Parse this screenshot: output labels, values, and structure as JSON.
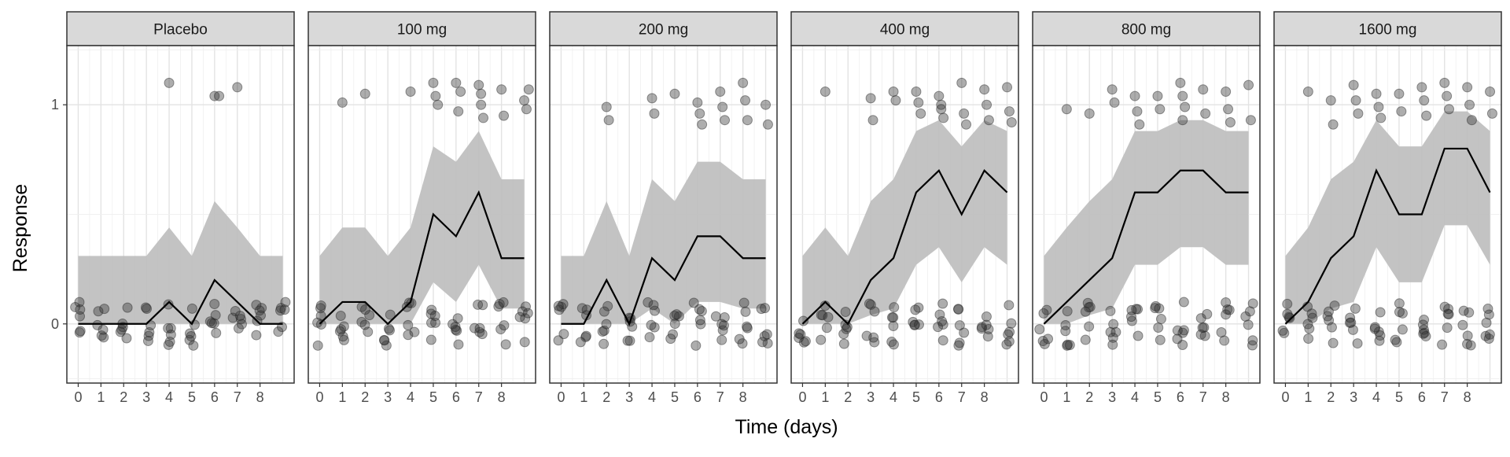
{
  "chart_data": {
    "type": "line",
    "facet_variable": "dose",
    "xlabel": "Time (days)",
    "ylabel": "Response",
    "x_ticks": [
      0,
      1,
      2,
      3,
      4,
      5,
      6,
      7,
      8
    ],
    "y_ticks": [
      0,
      1
    ],
    "xlim": [
      -0.5,
      9.5
    ],
    "ylim": [
      -0.27,
      1.27
    ],
    "grid": true,
    "ribbon_color": "#bdbdbd",
    "line_color": "#000000",
    "point_color": "#333333",
    "strip_color": "#d9d9d9",
    "panels": [
      {
        "label": "Placebo",
        "time": [
          0,
          1,
          2,
          3,
          4,
          5,
          6,
          7,
          8,
          9
        ],
        "median": [
          0,
          0,
          0,
          0,
          0.1,
          0,
          0.2,
          0.1,
          0,
          0
        ],
        "lower": [
          0,
          0,
          0,
          0,
          0,
          0,
          0,
          0,
          0,
          0
        ],
        "upper": [
          0.31,
          0.31,
          0.31,
          0.31,
          0.44,
          0.31,
          0.56,
          0.44,
          0.31,
          0.31
        ],
        "responders_near_1": [
          [
            4,
            1.1
          ],
          [
            6,
            1.04
          ],
          [
            6.2,
            1.04
          ],
          [
            7,
            1.08
          ]
        ]
      },
      {
        "label": "100 mg",
        "time": [
          0,
          1,
          2,
          3,
          4,
          5,
          6,
          7,
          8,
          9
        ],
        "median": [
          0,
          0.1,
          0.1,
          0,
          0.1,
          0.5,
          0.4,
          0.6,
          0.3,
          0.3
        ],
        "lower": [
          0,
          0,
          0,
          0,
          0,
          0.19,
          0.1,
          0.27,
          0.07,
          0.07
        ],
        "upper": [
          0.31,
          0.44,
          0.44,
          0.31,
          0.44,
          0.81,
          0.74,
          0.88,
          0.66,
          0.66
        ],
        "responders_near_1": [
          [
            1,
            1.01
          ],
          [
            2,
            1.05
          ],
          [
            4,
            1.06
          ],
          [
            5,
            1.1
          ],
          [
            5.1,
            1.04
          ],
          [
            5.2,
            1.0
          ],
          [
            6,
            1.1
          ],
          [
            6.1,
            0.97
          ],
          [
            6.2,
            1.06
          ],
          [
            7,
            1.09
          ],
          [
            7.1,
            1.0
          ],
          [
            7.2,
            0.94
          ],
          [
            7.1,
            1.05
          ],
          [
            8,
            1.07
          ],
          [
            8.1,
            0.95
          ],
          [
            9,
            1.02
          ],
          [
            9.1,
            0.98
          ],
          [
            9.2,
            1.07
          ]
        ]
      },
      {
        "label": "200 mg",
        "time": [
          0,
          1,
          2,
          3,
          4,
          5,
          6,
          7,
          8,
          9
        ],
        "median": [
          0,
          0,
          0.2,
          0,
          0.3,
          0.2,
          0.4,
          0.4,
          0.3,
          0.3
        ],
        "lower": [
          0,
          0,
          0,
          0,
          0.07,
          0,
          0.1,
          0.1,
          0.07,
          0.07
        ],
        "upper": [
          0.31,
          0.31,
          0.56,
          0.31,
          0.66,
          0.56,
          0.74,
          0.74,
          0.66,
          0.66
        ],
        "responders_near_1": [
          [
            2,
            0.99
          ],
          [
            2.1,
            0.93
          ],
          [
            4,
            1.03
          ],
          [
            4.1,
            0.96
          ],
          [
            5,
            1.05
          ],
          [
            6,
            1.01
          ],
          [
            6.1,
            0.96
          ],
          [
            6.2,
            0.91
          ],
          [
            7,
            1.06
          ],
          [
            7.1,
            0.99
          ],
          [
            7.2,
            0.93
          ],
          [
            8,
            1.1
          ],
          [
            8.1,
            1.02
          ],
          [
            8.2,
            0.93
          ],
          [
            9,
            1.0
          ],
          [
            9.1,
            0.91
          ]
        ]
      },
      {
        "label": "400 mg",
        "time": [
          0,
          1,
          2,
          3,
          4,
          5,
          6,
          7,
          8,
          9
        ],
        "median": [
          0,
          0.1,
          0,
          0.2,
          0.3,
          0.6,
          0.7,
          0.5,
          0.7,
          0.6
        ],
        "lower": [
          0,
          0,
          0,
          0.04,
          0.07,
          0.27,
          0.35,
          0.19,
          0.35,
          0.27
        ],
        "upper": [
          0.31,
          0.44,
          0.31,
          0.56,
          0.66,
          0.88,
          0.93,
          0.81,
          0.93,
          0.88
        ],
        "responders_near_1": [
          [
            1,
            1.06
          ],
          [
            3,
            1.03
          ],
          [
            3.1,
            0.93
          ],
          [
            4,
            1.06
          ],
          [
            4.1,
            1.02
          ],
          [
            5,
            1.06
          ],
          [
            5.1,
            1.01
          ],
          [
            5.2,
            0.96
          ],
          [
            6,
            1.04
          ],
          [
            6.1,
            0.98
          ],
          [
            6.2,
            0.94
          ],
          [
            6.1,
            1.0
          ],
          [
            7,
            1.1
          ],
          [
            7.1,
            0.96
          ],
          [
            7.2,
            0.91
          ],
          [
            8,
            1.07
          ],
          [
            8.1,
            1.0
          ],
          [
            8.2,
            0.93
          ],
          [
            9,
            1.08
          ],
          [
            9.1,
            0.97
          ],
          [
            9.2,
            0.92
          ]
        ]
      },
      {
        "label": "800 mg",
        "time": [
          0,
          1,
          2,
          3,
          4,
          5,
          6,
          7,
          8,
          9
        ],
        "median": [
          0,
          0.1,
          0.2,
          0.3,
          0.6,
          0.6,
          0.7,
          0.7,
          0.6,
          0.6
        ],
        "lower": [
          0,
          0,
          0.04,
          0.07,
          0.27,
          0.27,
          0.35,
          0.35,
          0.27,
          0.27
        ],
        "upper": [
          0.31,
          0.44,
          0.56,
          0.66,
          0.88,
          0.88,
          0.93,
          0.93,
          0.88,
          0.88
        ],
        "responders_near_1": [
          [
            1,
            0.98
          ],
          [
            2,
            0.96
          ],
          [
            3,
            1.07
          ],
          [
            3.1,
            1.01
          ],
          [
            4,
            1.04
          ],
          [
            4.1,
            0.97
          ],
          [
            4.2,
            0.91
          ],
          [
            5,
            1.04
          ],
          [
            5.1,
            0.98
          ],
          [
            6,
            1.1
          ],
          [
            6.1,
            1.04
          ],
          [
            6.2,
            0.99
          ],
          [
            6.1,
            0.93
          ],
          [
            7,
            1.07
          ],
          [
            7.1,
            0.96
          ],
          [
            8,
            1.06
          ],
          [
            8.1,
            0.98
          ],
          [
            8.2,
            0.92
          ],
          [
            9,
            1.09
          ],
          [
            9.1,
            0.93
          ]
        ]
      },
      {
        "label": "1600 mg",
        "time": [
          0,
          1,
          2,
          3,
          4,
          5,
          6,
          7,
          8,
          9
        ],
        "median": [
          0,
          0.1,
          0.3,
          0.4,
          0.7,
          0.5,
          0.5,
          0.8,
          0.8,
          0.6
        ],
        "lower": [
          0,
          0,
          0.07,
          0.1,
          0.35,
          0.19,
          0.19,
          0.45,
          0.45,
          0.27
        ],
        "upper": [
          0.31,
          0.44,
          0.66,
          0.74,
          0.93,
          0.81,
          0.81,
          0.97,
          0.97,
          0.88
        ],
        "responders_near_1": [
          [
            1,
            1.06
          ],
          [
            2,
            1.02
          ],
          [
            2.1,
            0.91
          ],
          [
            3,
            1.09
          ],
          [
            3.1,
            1.02
          ],
          [
            3.2,
            0.96
          ],
          [
            4,
            1.05
          ],
          [
            4.1,
            0.99
          ],
          [
            4.2,
            0.94
          ],
          [
            5,
            1.05
          ],
          [
            5.1,
            0.97
          ],
          [
            6,
            1.08
          ],
          [
            6.1,
            1.02
          ],
          [
            6.2,
            0.95
          ],
          [
            7,
            1.1
          ],
          [
            7.1,
            1.04
          ],
          [
            7.2,
            0.98
          ],
          [
            8,
            1.08
          ],
          [
            8.1,
            1.0
          ],
          [
            8.2,
            0.93
          ],
          [
            9,
            1.06
          ],
          [
            9.1,
            0.96
          ]
        ]
      }
    ]
  }
}
